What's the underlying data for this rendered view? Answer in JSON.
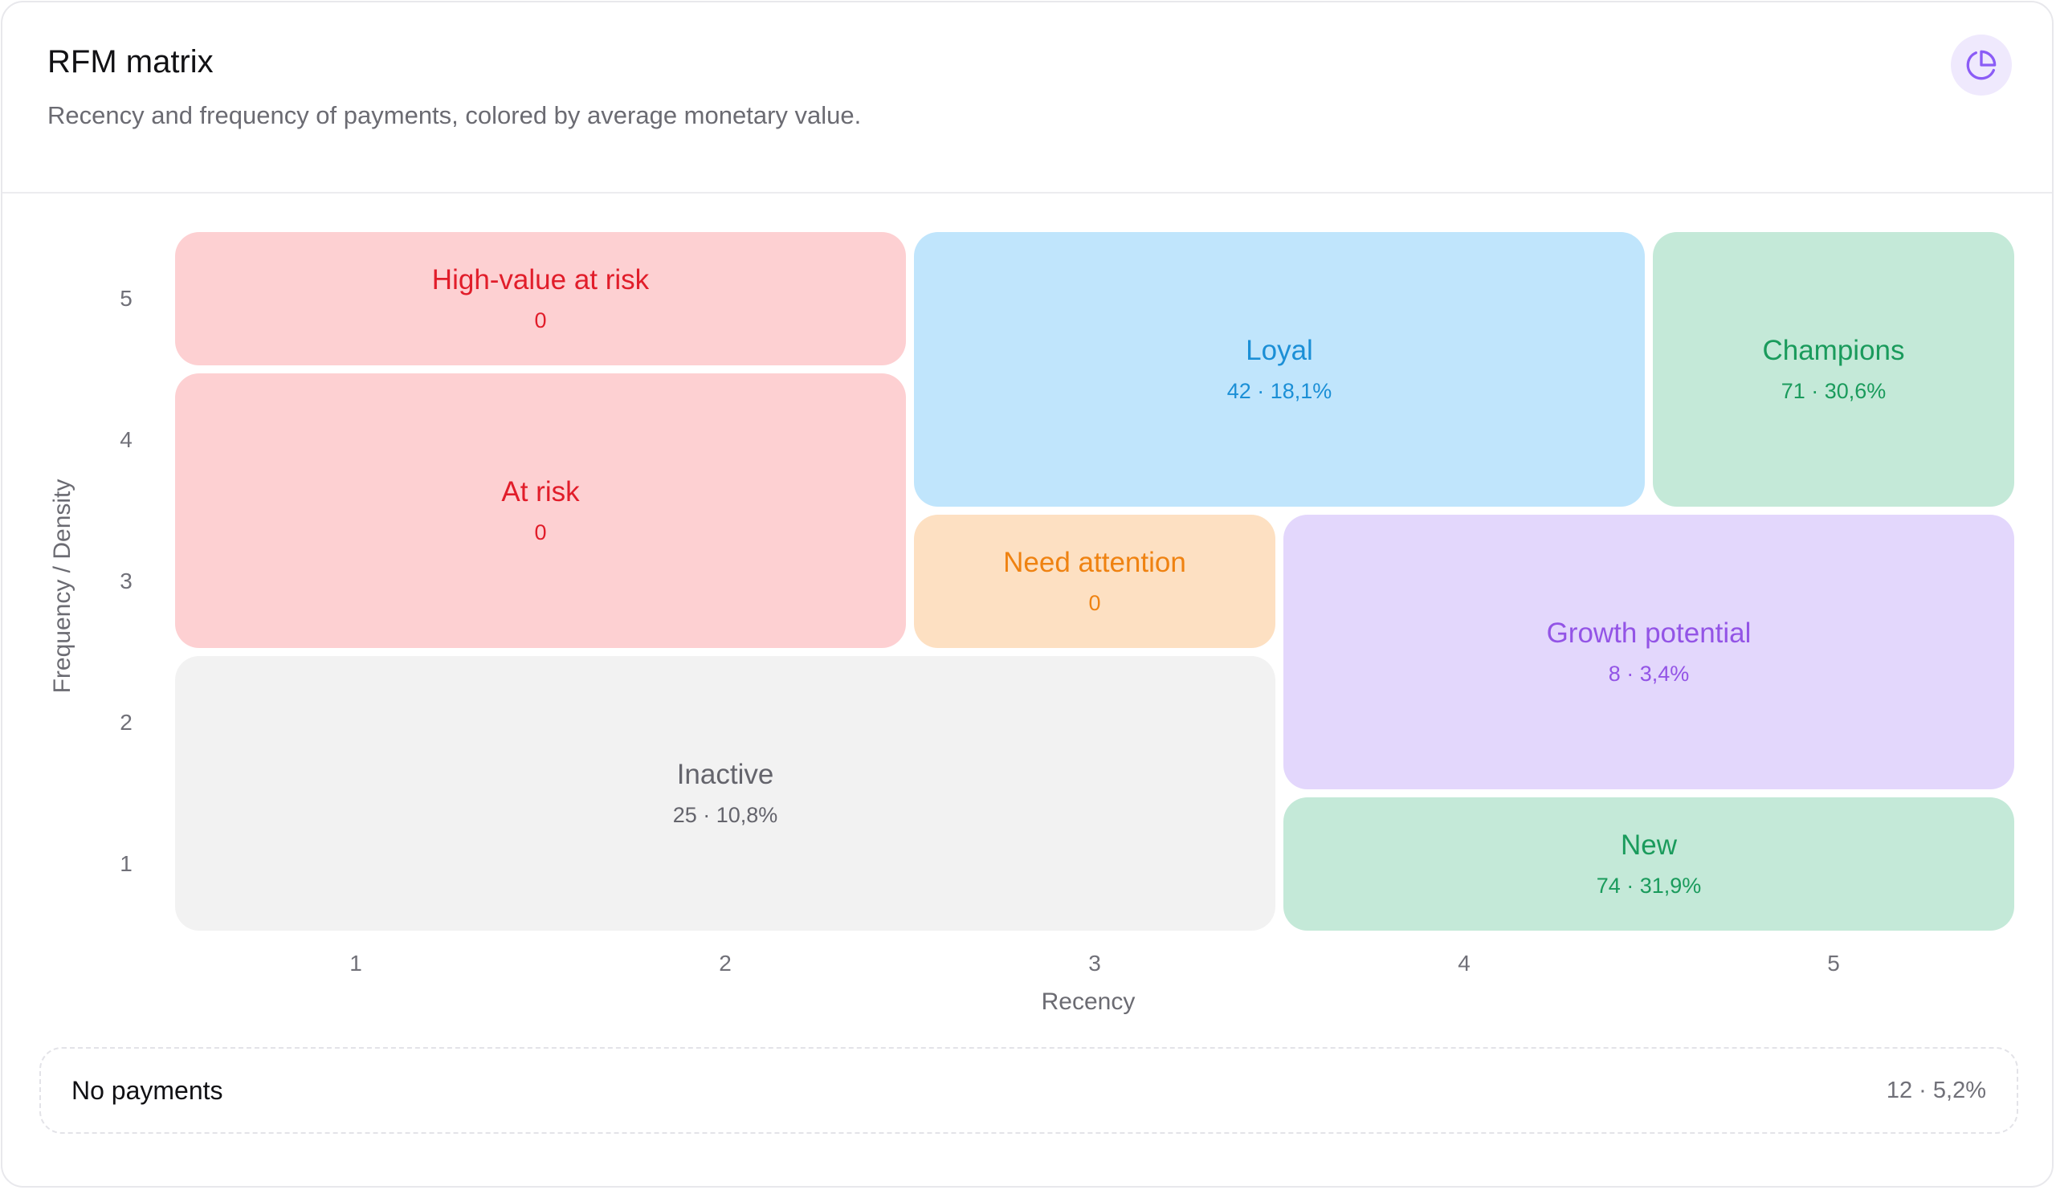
{
  "header": {
    "title": "RFM matrix",
    "subtitle": "Recency and frequency of payments, colored by average monetary value.",
    "icon": "pie-chart-icon"
  },
  "chart_data": {
    "type": "heatmap",
    "xlabel": "Recency",
    "ylabel": "Frequency / Density",
    "xlim": [
      0.5,
      5.5
    ],
    "ylim": [
      0.5,
      5.5
    ],
    "x_ticks": [
      "1",
      "2",
      "3",
      "4",
      "5"
    ],
    "y_ticks": [
      "1",
      "2",
      "3",
      "4",
      "5"
    ],
    "segments": [
      {
        "key": "high-value-at-risk",
        "label": "High-value at risk",
        "value_text": "0",
        "count": 0,
        "r": [
          1,
          2
        ],
        "f": [
          5,
          5
        ],
        "bg": "#fdd0d2",
        "fg": "#e11d2a"
      },
      {
        "key": "at-risk",
        "label": "At risk",
        "value_text": "0",
        "count": 0,
        "r": [
          1,
          2
        ],
        "f": [
          3,
          4
        ],
        "bg": "#fdd0d2",
        "fg": "#e11d2a"
      },
      {
        "key": "loyal",
        "label": "Loyal",
        "value_text": "42 · 18,1%",
        "count": 42,
        "percent": 18.1,
        "r": [
          3,
          4
        ],
        "f": [
          4,
          5
        ],
        "bg": "#c0e5fc",
        "fg": "#1b8fd6"
      },
      {
        "key": "champions",
        "label": "Champions",
        "value_text": "71 · 30,6%",
        "count": 71,
        "percent": 30.6,
        "r": [
          5,
          5
        ],
        "f": [
          4,
          5
        ],
        "bg": "#c4e9d8",
        "fg": "#1a9b5c"
      },
      {
        "key": "need-attention",
        "label": "Need attention",
        "value_text": "0",
        "count": 0,
        "r": [
          3,
          3
        ],
        "f": [
          3,
          3
        ],
        "bg": "#fde0c2",
        "fg": "#ef8211"
      },
      {
        "key": "growth-potential",
        "label": "Growth potential",
        "value_text": "8 · 3,4%",
        "count": 8,
        "percent": 3.4,
        "r": [
          4,
          5
        ],
        "f": [
          2,
          3
        ],
        "bg": "#e3d7fc",
        "fg": "#9354e6"
      },
      {
        "key": "inactive",
        "label": "Inactive",
        "value_text": "25 · 10,8%",
        "count": 25,
        "percent": 10.8,
        "r": [
          1,
          3
        ],
        "f": [
          1,
          2
        ],
        "bg": "#f2f2f2",
        "fg": "#64646c"
      },
      {
        "key": "new",
        "label": "New",
        "value_text": "74 · 31,9%",
        "count": 74,
        "percent": 31.9,
        "r": [
          4,
          5
        ],
        "f": [
          1,
          1
        ],
        "bg": "#c4e9d8",
        "fg": "#1a9b5c"
      }
    ]
  },
  "no_payments": {
    "label": "No payments",
    "value_text": "12 · 5,2%"
  }
}
